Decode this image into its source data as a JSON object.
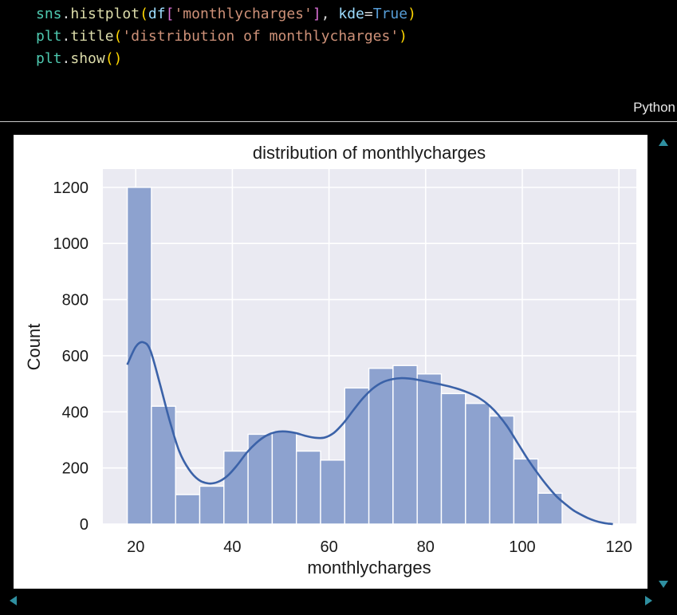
{
  "code_cell": {
    "lines": [
      [
        {
          "t": "sns",
          "c": "tok-var"
        },
        {
          "t": ".",
          "c": "tok-plain"
        },
        {
          "t": "histplot",
          "c": "tok-fn"
        },
        {
          "t": "(",
          "c": "tok-paren"
        },
        {
          "t": "df",
          "c": "tok-var2"
        },
        {
          "t": "[",
          "c": "tok-brack"
        },
        {
          "t": "'monthlycharges'",
          "c": "tok-str"
        },
        {
          "t": "]",
          "c": "tok-brack"
        },
        {
          "t": ", ",
          "c": "tok-plain"
        },
        {
          "t": "kde",
          "c": "tok-var2"
        },
        {
          "t": "=",
          "c": "tok-plain"
        },
        {
          "t": "True",
          "c": "tok-kw"
        },
        {
          "t": ")",
          "c": "tok-paren"
        }
      ],
      [
        {
          "t": "plt",
          "c": "tok-var"
        },
        {
          "t": ".",
          "c": "tok-plain"
        },
        {
          "t": "title",
          "c": "tok-fn"
        },
        {
          "t": "(",
          "c": "tok-paren"
        },
        {
          "t": "'distribution of monthlycharges'",
          "c": "tok-str"
        },
        {
          "t": ")",
          "c": "tok-paren"
        }
      ],
      [
        {
          "t": "plt",
          "c": "tok-var"
        },
        {
          "t": ".",
          "c": "tok-plain"
        },
        {
          "t": "show",
          "c": "tok-fn"
        },
        {
          "t": "()",
          "c": "tok-paren"
        }
      ]
    ],
    "language_label": "Python"
  },
  "chart_data": {
    "type": "bar",
    "title": "distribution of monthlycharges",
    "xlabel": "monthlycharges",
    "ylabel": "Count",
    "xlim": [
      13.2,
      123.6
    ],
    "ylim": [
      0,
      1265
    ],
    "xticks": [
      20,
      40,
      60,
      80,
      100,
      120
    ],
    "yticks": [
      0,
      200,
      400,
      600,
      800,
      1000,
      1200
    ],
    "grid": true,
    "bar_color": "#8da2cf",
    "kde_color": "#3b62a8",
    "bins": [
      {
        "x0": 18.25,
        "x1": 23.25,
        "count": 1200
      },
      {
        "x0": 23.25,
        "x1": 28.25,
        "count": 420
      },
      {
        "x0": 28.25,
        "x1": 33.25,
        "count": 105
      },
      {
        "x0": 33.25,
        "x1": 38.25,
        "count": 135
      },
      {
        "x0": 38.25,
        "x1": 43.25,
        "count": 260
      },
      {
        "x0": 43.25,
        "x1": 48.25,
        "count": 320
      },
      {
        "x0": 48.25,
        "x1": 53.25,
        "count": 330
      },
      {
        "x0": 53.25,
        "x1": 58.25,
        "count": 260
      },
      {
        "x0": 58.25,
        "x1": 63.25,
        "count": 228
      },
      {
        "x0": 63.25,
        "x1": 68.25,
        "count": 485
      },
      {
        "x0": 68.25,
        "x1": 73.25,
        "count": 555
      },
      {
        "x0": 73.25,
        "x1": 78.25,
        "count": 565
      },
      {
        "x0": 78.25,
        "x1": 83.25,
        "count": 535
      },
      {
        "x0": 83.25,
        "x1": 88.25,
        "count": 465
      },
      {
        "x0": 88.25,
        "x1": 93.25,
        "count": 430
      },
      {
        "x0": 93.25,
        "x1": 98.25,
        "count": 385
      },
      {
        "x0": 98.25,
        "x1": 103.25,
        "count": 232
      },
      {
        "x0": 103.25,
        "x1": 108.25,
        "count": 110
      },
      {
        "x0": 108.25,
        "x1": 113.25,
        "count": 0
      },
      {
        "x0": 113.25,
        "x1": 118.75,
        "count": 0
      }
    ],
    "kde": [
      [
        18.25,
        568
      ],
      [
        20,
        632
      ],
      [
        21.5,
        648
      ],
      [
        23,
        620
      ],
      [
        25,
        500
      ],
      [
        27,
        370
      ],
      [
        29,
        260
      ],
      [
        31,
        195
      ],
      [
        33,
        158
      ],
      [
        35,
        145
      ],
      [
        37,
        150
      ],
      [
        39,
        172
      ],
      [
        41,
        210
      ],
      [
        43,
        255
      ],
      [
        45,
        290
      ],
      [
        47,
        315
      ],
      [
        49,
        328
      ],
      [
        51,
        330
      ],
      [
        53,
        325
      ],
      [
        55,
        315
      ],
      [
        57,
        308
      ],
      [
        59,
        308
      ],
      [
        61,
        325
      ],
      [
        63,
        360
      ],
      [
        65,
        405
      ],
      [
        67,
        448
      ],
      [
        69,
        482
      ],
      [
        71,
        505
      ],
      [
        73,
        516
      ],
      [
        75,
        520
      ],
      [
        77,
        518
      ],
      [
        79,
        512
      ],
      [
        81,
        505
      ],
      [
        83,
        498
      ],
      [
        85,
        490
      ],
      [
        87,
        480
      ],
      [
        89,
        467
      ],
      [
        91,
        450
      ],
      [
        93,
        425
      ],
      [
        95,
        390
      ],
      [
        97,
        345
      ],
      [
        99,
        290
      ],
      [
        101,
        235
      ],
      [
        103,
        185
      ],
      [
        105,
        140
      ],
      [
        107,
        100
      ],
      [
        109,
        70
      ],
      [
        110.5,
        50
      ],
      [
        112,
        35
      ],
      [
        113.5,
        22
      ],
      [
        115,
        12
      ],
      [
        116.5,
        5
      ],
      [
        118,
        1
      ],
      [
        118.75,
        0
      ]
    ]
  }
}
